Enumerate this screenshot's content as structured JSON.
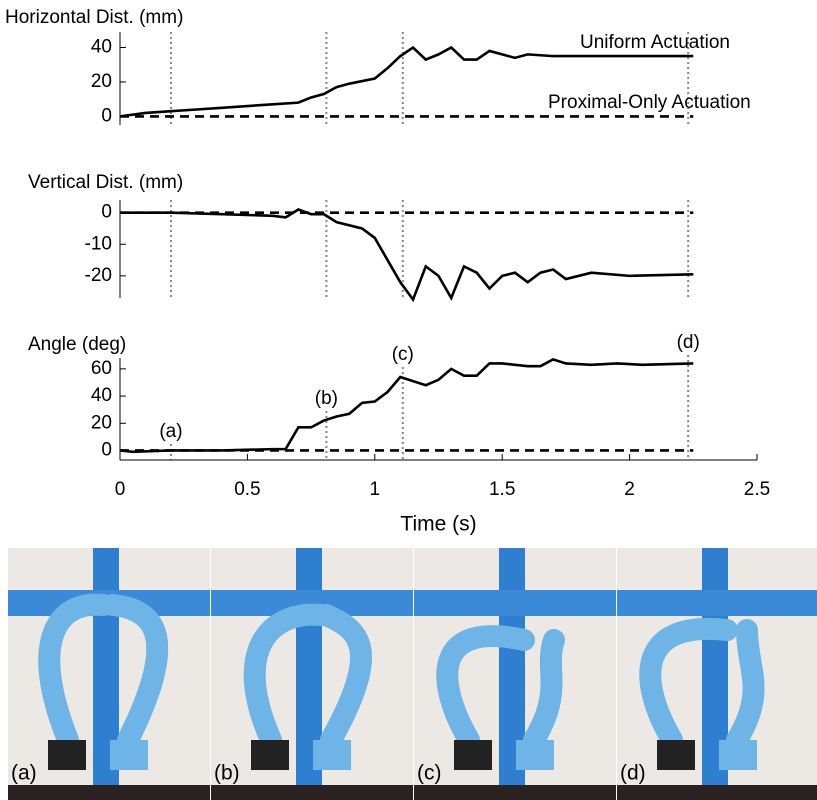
{
  "chart_data": [
    {
      "type": "line",
      "title": "Horizontal Dist. (mm)",
      "xlim": [
        0,
        2.5
      ],
      "ylim": [
        -5,
        49
      ],
      "yticks": [
        0,
        20,
        40
      ],
      "vlines": [
        0.2,
        0.81,
        1.11,
        2.23
      ],
      "series": [
        {
          "name": "Uniform Actuation",
          "color": "#000000",
          "linestyle": "solid",
          "x": [
            0,
            0.1,
            0.2,
            0.3,
            0.4,
            0.5,
            0.6,
            0.7,
            0.75,
            0.8,
            0.85,
            0.9,
            1.0,
            1.05,
            1.1,
            1.15,
            1.2,
            1.25,
            1.3,
            1.35,
            1.4,
            1.45,
            1.5,
            1.55,
            1.6,
            1.7,
            1.8,
            2.0,
            2.25
          ],
          "values": [
            0,
            2,
            3,
            4,
            5,
            6,
            7,
            8,
            11,
            13,
            17,
            19,
            22,
            28,
            35,
            40,
            33,
            36,
            40,
            33,
            33,
            38,
            36,
            34,
            36,
            35,
            35,
            35,
            35
          ]
        },
        {
          "name": "Proximal-Only Actuation",
          "color": "#000000",
          "linestyle": "dashed",
          "x": [
            0,
            2.25
          ],
          "values": [
            0,
            0
          ]
        }
      ]
    },
    {
      "type": "line",
      "title": "Vertical Dist. (mm)",
      "xlim": [
        0,
        2.5
      ],
      "ylim": [
        -27,
        4
      ],
      "yticks": [
        0,
        -10,
        -20
      ],
      "vlines": [
        0.2,
        0.81,
        1.11,
        2.23
      ],
      "series": [
        {
          "color": "#000000",
          "linestyle": "solid",
          "x": [
            0,
            0.2,
            0.4,
            0.6,
            0.65,
            0.7,
            0.75,
            0.8,
            0.85,
            0.95,
            1.0,
            1.05,
            1.1,
            1.15,
            1.2,
            1.25,
            1.3,
            1.35,
            1.4,
            1.45,
            1.5,
            1.55,
            1.6,
            1.65,
            1.7,
            1.75,
            1.85,
            2.0,
            2.25
          ],
          "values": [
            0,
            0,
            -0.5,
            -1,
            -1.5,
            1,
            -0.5,
            -0.5,
            -3,
            -5,
            -8,
            -15,
            -22,
            -27.5,
            -17,
            -20,
            -27,
            -17,
            -19,
            -24,
            -20,
            -19,
            -22,
            -19,
            -18,
            -21,
            -19,
            -20,
            -19.5
          ]
        },
        {
          "color": "#000000",
          "linestyle": "dashed",
          "x": [
            0,
            2.25
          ],
          "values": [
            0,
            0
          ]
        }
      ]
    },
    {
      "type": "line",
      "title": "Angle (deg)",
      "xlabel": "Time (s)",
      "xlim": [
        0,
        2.5
      ],
      "ylim": [
        -7,
        68
      ],
      "yticks": [
        0,
        20,
        40,
        60
      ],
      "xticks": [
        0,
        0.5,
        1,
        1.5,
        2,
        2.5
      ],
      "annotations": [
        {
          "x": 0.2,
          "text": "(a)"
        },
        {
          "x": 0.81,
          "text": "(b)"
        },
        {
          "x": 1.11,
          "text": "(c)"
        },
        {
          "x": 2.23,
          "text": "(d)"
        }
      ],
      "series": [
        {
          "color": "#000000",
          "linestyle": "solid",
          "x": [
            0,
            0.05,
            0.2,
            0.4,
            0.6,
            0.65,
            0.7,
            0.75,
            0.8,
            0.85,
            0.9,
            0.95,
            1.0,
            1.05,
            1.1,
            1.15,
            1.2,
            1.25,
            1.3,
            1.35,
            1.4,
            1.45,
            1.5,
            1.6,
            1.65,
            1.7,
            1.75,
            1.85,
            1.95,
            2.05,
            2.25
          ],
          "values": [
            0,
            -1,
            0,
            0,
            1,
            1,
            17,
            17,
            22,
            25,
            27,
            35,
            36,
            43,
            54,
            51,
            48,
            52,
            60,
            55,
            55,
            64,
            64,
            62,
            62,
            67,
            64,
            63,
            64,
            63,
            64
          ]
        },
        {
          "color": "#000000",
          "linestyle": "dashed",
          "x": [
            0,
            2.25
          ],
          "values": [
            0,
            0
          ]
        }
      ]
    }
  ],
  "photos": [
    {
      "label": "(a)"
    },
    {
      "label": "(b)"
    },
    {
      "label": "(c)"
    },
    {
      "label": "(d)"
    }
  ]
}
